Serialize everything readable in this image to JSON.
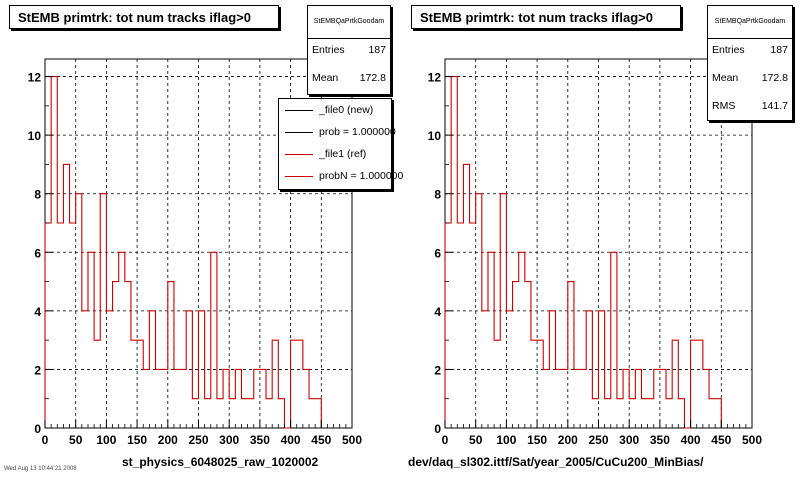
{
  "colors": {
    "ref": "#cc0000",
    "new": "#000000",
    "grid": "#000000"
  },
  "chart_data": [
    {
      "type": "histogram",
      "title": "StEMB primtrk: tot num tracks iflag>0",
      "xlabel": "st_physics_6048025_raw_1020002",
      "ylabel": "",
      "xlim": [
        0,
        500
      ],
      "ylim": [
        0,
        12.6
      ],
      "grid": true,
      "bin_width": 10,
      "x_ticks": [
        "0",
        "50",
        "100",
        "150",
        "200",
        "250",
        "300",
        "350",
        "400",
        "450",
        "500"
      ],
      "y_ticks": [
        "0",
        "2",
        "4",
        "6",
        "8",
        "10",
        "12"
      ],
      "series": [
        {
          "name": "_file1 (ref)",
          "values": [
            7,
            12,
            7,
            9,
            7,
            8,
            4,
            6,
            3,
            8,
            4,
            5,
            6,
            5,
            3,
            3,
            2,
            4,
            2,
            2,
            5,
            2,
            2,
            4,
            1,
            4,
            1,
            6,
            1,
            2,
            1,
            2,
            1,
            1,
            2,
            2,
            1,
            3,
            1,
            0,
            3,
            3,
            2,
            1,
            1
          ]
        }
      ],
      "stats": {
        "name": "StEMBQaPrtkGoodam",
        "entries_label": "Entries",
        "entries": "187",
        "mean_label": "Mean",
        "mean": "172.8"
      },
      "legend": {
        "position": "top-right",
        "entries": [
          {
            "label": "_file0 (new)",
            "color": "#000000"
          },
          {
            "label": "prob = 1.000000",
            "color": "#000000"
          },
          {
            "label": "_file1 (ref)",
            "color": "#cc0000"
          },
          {
            "label": "probN = 1.000000",
            "color": "#cc0000"
          }
        ]
      }
    },
    {
      "type": "histogram",
      "title": "StEMB primtrk: tot num tracks iflag>0",
      "xlabel": "dev/daq_sl302.ittf/Sat/year_2005/CuCu200_MinBias/",
      "ylabel": "",
      "xlim": [
        0,
        500
      ],
      "ylim": [
        0,
        12.6
      ],
      "grid": true,
      "bin_width": 10,
      "x_ticks": [
        "0",
        "50",
        "100",
        "150",
        "200",
        "250",
        "300",
        "350",
        "400",
        "450",
        "500"
      ],
      "y_ticks": [
        "0",
        "2",
        "4",
        "6",
        "8",
        "10",
        "12"
      ],
      "series": [
        {
          "name": "",
          "values": [
            7,
            12,
            7,
            9,
            7,
            8,
            4,
            6,
            3,
            8,
            4,
            5,
            6,
            5,
            3,
            3,
            2,
            4,
            2,
            2,
            5,
            2,
            2,
            4,
            1,
            4,
            1,
            6,
            1,
            2,
            1,
            2,
            1,
            1,
            2,
            2,
            1,
            3,
            1,
            0,
            3,
            3,
            2,
            1,
            1
          ]
        }
      ],
      "stats": {
        "name": "StEMBQaPrtkGoodam",
        "entries_label": "Entries",
        "entries": "187",
        "mean_label": "Mean",
        "mean": "172.8",
        "rms_label": "RMS",
        "rms": "141.7"
      }
    }
  ],
  "footer": {
    "timestamp": "Wed Aug 13 10:44:21 2008"
  }
}
